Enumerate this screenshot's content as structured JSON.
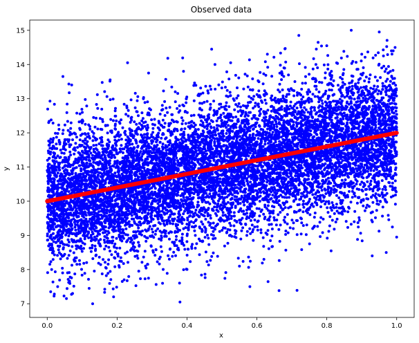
{
  "chart_data": {
    "type": "scatter",
    "title": "Observed data",
    "xlabel": "x",
    "ylabel": "y",
    "xlim": [
      -0.05,
      1.05
    ],
    "ylim": [
      6.6,
      15.3
    ],
    "xticks": [
      "0.0",
      "0.2",
      "0.4",
      "0.6",
      "0.8",
      "1.0"
    ],
    "yticks": [
      "7",
      "8",
      "9",
      "10",
      "11",
      "12",
      "13",
      "14",
      "15"
    ],
    "grid": false,
    "legend": "none",
    "colors": {
      "points": "#0000ff",
      "line": "#ff0000",
      "axes": "#000000",
      "background": "#ffffff"
    },
    "series": [
      {
        "type": "scatter",
        "point_count": 10000,
        "distribution": "y = 10 + 2x + normal noise (sd 1)",
        "points": [
          [
            0.01,
            7.35
          ],
          [
            0.045,
            13.65
          ],
          [
            0.055,
            7.15
          ],
          [
            0.07,
            13.4
          ],
          [
            0.13,
            7.0
          ],
          [
            0.18,
            13.55
          ],
          [
            0.23,
            14.05
          ],
          [
            0.29,
            13.75
          ],
          [
            0.38,
            7.05
          ],
          [
            0.39,
            13.8
          ],
          [
            0.48,
            14.0
          ],
          [
            0.58,
            7.5
          ],
          [
            0.63,
            14.3
          ],
          [
            0.72,
            14.85
          ],
          [
            0.77,
            14.45
          ],
          [
            0.8,
            14.55
          ],
          [
            0.87,
            15.0
          ],
          [
            0.9,
            14.3
          ],
          [
            0.95,
            14.95
          ],
          [
            0.99,
            14.4
          ],
          [
            1.0,
            8.95
          ],
          [
            0.93,
            8.4
          ],
          [
            0.97,
            8.5
          ],
          [
            0.55,
            8.1
          ],
          [
            0.62,
            8.3
          ],
          [
            0.33,
            7.6
          ],
          [
            0.22,
            7.7
          ],
          [
            0.19,
            7.2
          ],
          [
            0.03,
            7.5
          ],
          [
            0.12,
            7.45
          ]
        ]
      },
      {
        "type": "line",
        "x": [
          0.0,
          1.0
        ],
        "y": [
          10.0,
          12.0
        ]
      }
    ]
  }
}
